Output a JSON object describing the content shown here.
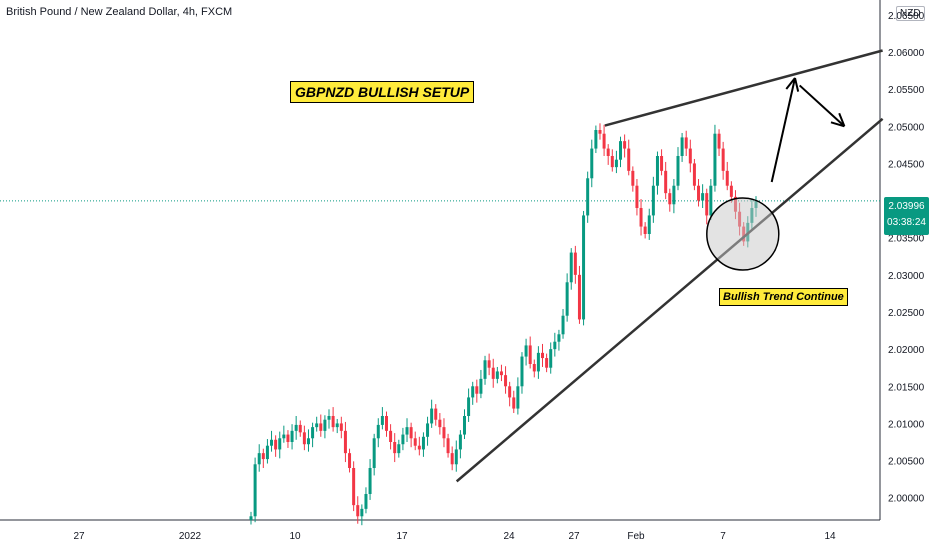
{
  "header": {
    "title": "British Pound / New Zealand Dollar, 4h, FXCM"
  },
  "axis": {
    "currency": "NZD"
  },
  "last_price": {
    "value": "2.03996",
    "countdown": "03:38:24"
  },
  "annotations": {
    "setup": "GBPNZD BULLISH SETUP",
    "trend": "Bullish Trend Continue"
  },
  "colors": {
    "up": "#089981",
    "down": "#f23645",
    "note_bg": "#ffeb3b",
    "line": "#333333"
  },
  "chart_data": {
    "type": "candlestick",
    "title": "British Pound / New Zealand Dollar, 4h, FXCM",
    "ylim": [
      1.997,
      2.067
    ],
    "y_ticks": [
      "2.00000",
      "2.00500",
      "2.01000",
      "2.01500",
      "2.02000",
      "2.02500",
      "2.03000",
      "2.03500",
      "2.04000",
      "2.04500",
      "2.05000",
      "2.05500",
      "2.06000",
      "2.06500"
    ],
    "x_ticks": [
      "27",
      "2022",
      "10",
      "17",
      "24",
      "27",
      "Feb",
      "7",
      "14"
    ],
    "last_price": 2.03996,
    "series": [
      {
        "name": "close",
        "values": [
          1.9975,
          2.0045,
          2.006,
          2.0052,
          2.007,
          2.0078,
          2.0065,
          2.008,
          2.0085,
          2.0075,
          2.009,
          2.0098,
          2.0088,
          2.0072,
          2.008,
          2.0095,
          2.01,
          2.009,
          2.0105,
          2.011,
          2.0095,
          2.01,
          2.009,
          2.006,
          2.004,
          1.999,
          1.9975,
          1.9985,
          2.0005,
          2.004,
          2.008,
          2.0098,
          2.011,
          2.009,
          2.0075,
          2.006,
          2.0072,
          2.0085,
          2.0095,
          2.008,
          2.007,
          2.0065,
          2.0082,
          2.01,
          2.012,
          2.0105,
          2.0095,
          2.008,
          2.006,
          2.0045,
          2.0065,
          2.0085,
          2.011,
          2.0135,
          2.015,
          2.014,
          2.016,
          2.0185,
          2.0175,
          2.016,
          2.017,
          2.0165,
          2.015,
          2.0135,
          2.012,
          2.015,
          2.019,
          2.0205,
          2.018,
          2.017,
          2.0195,
          2.0188,
          2.0175,
          2.02,
          2.021,
          2.022,
          2.0245,
          2.029,
          2.033,
          2.03,
          2.024,
          2.038,
          2.043,
          2.047,
          2.0495,
          2.049,
          2.047,
          2.046,
          2.0445,
          2.0455,
          2.048,
          2.047,
          2.044,
          2.042,
          2.039,
          2.0365,
          2.0355,
          2.038,
          2.042,
          2.046,
          2.044,
          2.041,
          2.0395,
          2.042,
          2.046,
          2.0485,
          2.047,
          2.045,
          2.042,
          2.04,
          2.041,
          2.038,
          2.042,
          2.049,
          2.047,
          2.044,
          2.042,
          2.0405,
          2.0385,
          2.0365,
          2.0345,
          2.037,
          2.039,
          2.04
        ]
      }
    ],
    "trend_lines": [
      {
        "name": "support",
        "x": [
          0.49,
          0.947
        ],
        "y": [
          2.0022,
          2.051
        ]
      },
      {
        "name": "resistance",
        "x": [
          0.649,
          0.947
        ],
        "y": [
          2.0501,
          2.0602
        ]
      }
    ],
    "highlight": {
      "shape": "circle",
      "x": 0.797,
      "y": 2.0355
    },
    "projection_arrows": [
      {
        "x": [
          0.828,
          0.853
        ],
        "y": [
          2.0425,
          2.0565
        ]
      },
      {
        "x": [
          0.858,
          0.906
        ],
        "y": [
          2.0555,
          2.05
        ]
      }
    ]
  }
}
